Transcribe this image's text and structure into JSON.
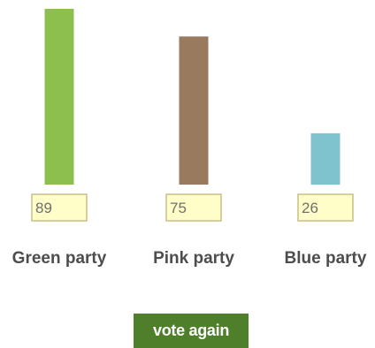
{
  "chart_data": {
    "type": "bar",
    "title": "",
    "xlabel": "",
    "ylabel": "",
    "ylim": [
      0,
      89
    ],
    "grid": false,
    "legend": "none",
    "categories": [
      "Green party",
      "Pink party",
      "Blue party"
    ],
    "values": [
      89,
      75,
      26
    ],
    "colors": [
      "#8cbf4e",
      "#9a7a5e",
      "#7fc3cf"
    ]
  },
  "vote_button": {
    "label": "vote again"
  }
}
